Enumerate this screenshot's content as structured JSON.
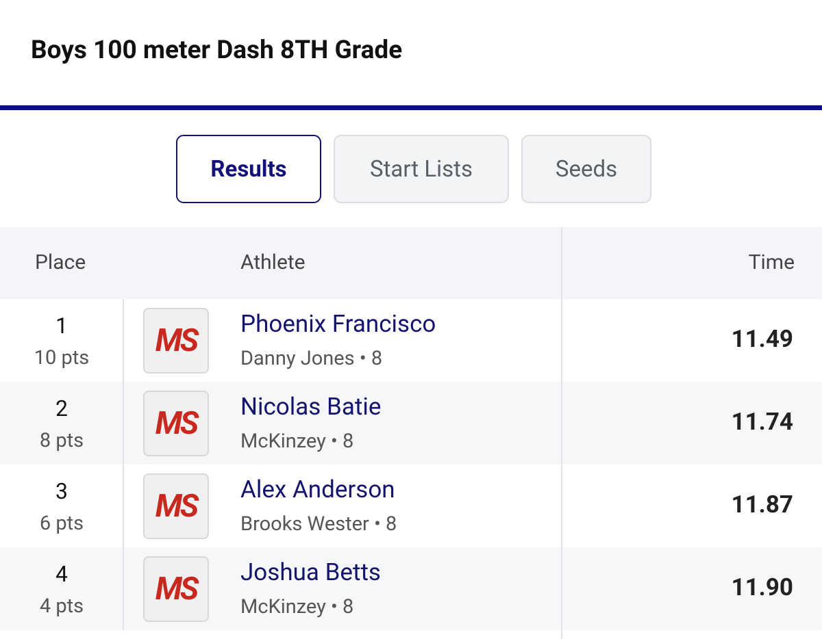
{
  "header": {
    "title": "Boys 100 meter Dash 8TH Grade"
  },
  "tabs": [
    "Results",
    "Start Lists",
    "Seeds"
  ],
  "table": {
    "columns": [
      "Place",
      "Athlete",
      "Time"
    ],
    "rows": [
      {
        "place": "1",
        "points": "10 pts",
        "logo": "MS",
        "name": "Phoenix Francisco",
        "meta": "Danny Jones • 8",
        "time": "11.49"
      },
      {
        "place": "2",
        "points": "8 pts",
        "logo": "MS",
        "name": "Nicolas Batie",
        "meta": "McKinzey • 8",
        "time": "11.74"
      },
      {
        "place": "3",
        "points": "6 pts",
        "logo": "MS",
        "name": "Alex Anderson",
        "meta": "Brooks Wester • 8",
        "time": "11.87"
      },
      {
        "place": "4",
        "points": "4 pts",
        "logo": "MS",
        "name": "Joshua Betts",
        "meta": "McKinzey • 8",
        "time": "11.90"
      }
    ]
  }
}
